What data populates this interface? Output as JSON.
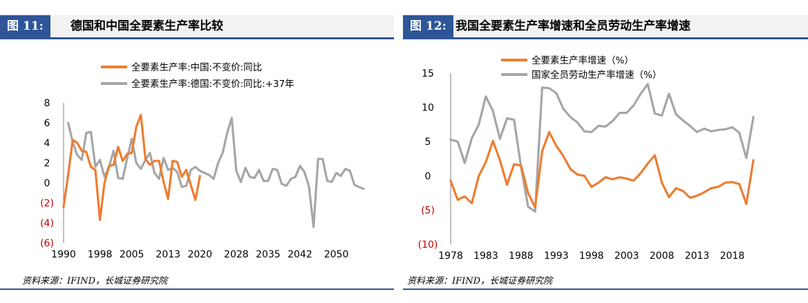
{
  "left": {
    "fig_label": "图 11:",
    "fig_title": "德国和中国全要素生产率比较",
    "source": "资料来源：IFIND，长城证券研究院",
    "chart_data": {
      "type": "line",
      "title": "",
      "xlabel": "",
      "ylabel": "",
      "ylim": [
        -6,
        8
      ],
      "xlim": [
        1990,
        2056
      ],
      "x_ticks": [
        "1990",
        "1998",
        "2005",
        "2013",
        "2020",
        "2028",
        "2035",
        "2042",
        "2050"
      ],
      "x_tick_values": [
        1990,
        1998,
        2005,
        2013,
        2020,
        2028,
        2035,
        2042,
        2050
      ],
      "y_ticks": [
        "8",
        "6",
        "4",
        "2",
        "0",
        "(2)",
        "(4)",
        "(6)"
      ],
      "y_tick_values": [
        8,
        6,
        4,
        2,
        0,
        -2,
        -4,
        -6
      ],
      "y_tick_negative_color": "#c00000",
      "legend_position": "top",
      "series": [
        {
          "name": "全要素生产率:中国:不变价:同比",
          "color": "#ed7d31",
          "x": [
            1990,
            1991,
            1992,
            1993,
            1994,
            1995,
            1996,
            1997,
            1998,
            1999,
            2000,
            2001,
            2002,
            2003,
            2004,
            2005,
            2006,
            2007,
            2008,
            2009,
            2010,
            2011,
            2012,
            2013,
            2014,
            2015,
            2016,
            2017,
            2018,
            2019,
            2020
          ],
          "values": [
            -2.4,
            0.8,
            4.3,
            4.0,
            3.2,
            3.1,
            1.6,
            1.3,
            -3.7,
            0,
            1.7,
            1.8,
            3.6,
            2.2,
            2.9,
            3.0,
            5.6,
            6.8,
            2.4,
            1.8,
            2.2,
            2.2,
            0.1,
            -1.6,
            2.2,
            2.1,
            0.6,
            1.3,
            -0.2,
            -1.7,
            0.7
          ]
        },
        {
          "name": "全要素生产率:德国:不变价:同比:+37年",
          "color": "#a6a6a6",
          "x": [
            1991,
            1992,
            1993,
            1994,
            1995,
            1996,
            1997,
            1998,
            1999,
            2000,
            2001,
            2002,
            2003,
            2004,
            2005,
            2006,
            2007,
            2008,
            2009,
            2010,
            2011,
            2012,
            2013,
            2014,
            2015,
            2016,
            2017,
            2018,
            2019,
            2020,
            2021,
            2022,
            2023,
            2024,
            2025,
            2026,
            2027,
            2028,
            2029,
            2030,
            2031,
            2032,
            2033,
            2034,
            2035,
            2036,
            2037,
            2038,
            2039,
            2040,
            2041,
            2042,
            2043,
            2044,
            2045,
            2046,
            2047,
            2048,
            2049,
            2050,
            2051,
            2052,
            2053,
            2054,
            2055,
            2056
          ],
          "values": [
            6.0,
            4.1,
            2.8,
            2.3,
            5.0,
            5.1,
            1.6,
            2.3,
            0.6,
            1.6,
            3.2,
            0.5,
            0.4,
            2.5,
            4.4,
            2.0,
            1.4,
            2.3,
            3.0,
            1.0,
            0.4,
            2.5,
            1.3,
            1.5,
            1.1,
            -0.4,
            -0.3,
            1.3,
            1.6,
            1.2,
            1.0,
            0.8,
            0.4,
            2.0,
            3.0,
            5.0,
            6.5,
            1.2,
            0.1,
            1.5,
            0.6,
            0.5,
            1.3,
            0.2,
            0.2,
            1.4,
            1.3,
            -0.1,
            -0.3,
            0.4,
            0.6,
            1.7,
            1.1,
            -0.4,
            -4.4,
            2.4,
            2.4,
            0.2,
            0.1,
            1.0,
            0.7,
            1.4,
            1.2,
            -0.2,
            -0.4,
            -0.6
          ]
        }
      ]
    }
  },
  "right": {
    "fig_label": "图 12:",
    "fig_title": "我国全要素生产率增速和全员劳动生产率增速",
    "source": "资料来源：IFIND，长城证券研究院",
    "chart_data": {
      "type": "line",
      "title": "",
      "xlabel": "",
      "ylabel": "",
      "ylim": [
        -10,
        15
      ],
      "xlim": [
        1978,
        2021
      ],
      "x_ticks": [
        "1978",
        "1983",
        "1988",
        "1993",
        "1998",
        "2003",
        "2008",
        "2013",
        "2018"
      ],
      "x_tick_values": [
        1978,
        1983,
        1988,
        1993,
        1998,
        2003,
        2008,
        2013,
        2018
      ],
      "y_ticks": [
        "15",
        "10",
        "5",
        "0",
        "(5)",
        "(10)"
      ],
      "y_tick_values": [
        15,
        10,
        5,
        0,
        -5,
        -10
      ],
      "y_tick_negative_color": "#c00000",
      "legend_position": "top",
      "series": [
        {
          "name": "全要素生产率增速（%）",
          "color": "#ed7d31",
          "x": [
            1978,
            1979,
            1980,
            1981,
            1982,
            1983,
            1984,
            1985,
            1986,
            1987,
            1988,
            1989,
            1990,
            1991,
            1992,
            1993,
            1994,
            1995,
            1996,
            1997,
            1998,
            1999,
            2000,
            2001,
            2002,
            2003,
            2004,
            2005,
            2006,
            2007,
            2008,
            2009,
            2010,
            2011,
            2012,
            2013,
            2014,
            2015,
            2016,
            2017,
            2018,
            2019,
            2020,
            2021
          ],
          "values": [
            -0.7,
            -3.5,
            -3.0,
            -4.0,
            0,
            2.0,
            5.1,
            2.3,
            -1.3,
            1.7,
            1.5,
            -2.5,
            -4.6,
            3.6,
            6.4,
            4.4,
            2.9,
            1.0,
            0.2,
            0,
            -1.6,
            -1.0,
            -0.2,
            -0.5,
            -0.2,
            -0.4,
            -0.7,
            0.4,
            1.8,
            3.0,
            -1.0,
            -3.1,
            -1.8,
            -2.2,
            -3.2,
            -2.9,
            -2.4,
            -1.8,
            -1.6,
            -1.0,
            -0.9,
            -1.2,
            -4.1,
            2.3
          ]
        },
        {
          "name": "国家全员劳动生产率增速（%）",
          "color": "#a6a6a6",
          "x": [
            1978,
            1979,
            1980,
            1981,
            1982,
            1983,
            1984,
            1985,
            1986,
            1987,
            1988,
            1989,
            1990,
            1991,
            1992,
            1993,
            1994,
            1995,
            1996,
            1997,
            1998,
            1999,
            2000,
            2001,
            2002,
            2003,
            2004,
            2005,
            2006,
            2007,
            2008,
            2009,
            2010,
            2011,
            2012,
            2013,
            2014,
            2015,
            2016,
            2017,
            2018,
            2019,
            2020,
            2021
          ],
          "values": [
            5.3,
            5.0,
            1.9,
            5.5,
            7.5,
            11.6,
            9.5,
            5.4,
            8.4,
            8.2,
            1.3,
            -4.5,
            -5.2,
            12.9,
            12.8,
            12.1,
            9.8,
            8.6,
            7.8,
            6.5,
            6.4,
            7.3,
            7.2,
            8.0,
            9.2,
            9.2,
            10.3,
            12.0,
            13.4,
            9.1,
            8.8,
            12.0,
            9.0,
            8.1,
            7.3,
            6.4,
            6.9,
            6.5,
            6.7,
            6.8,
            7.1,
            6.3,
            2.6,
            8.6
          ]
        }
      ]
    }
  }
}
